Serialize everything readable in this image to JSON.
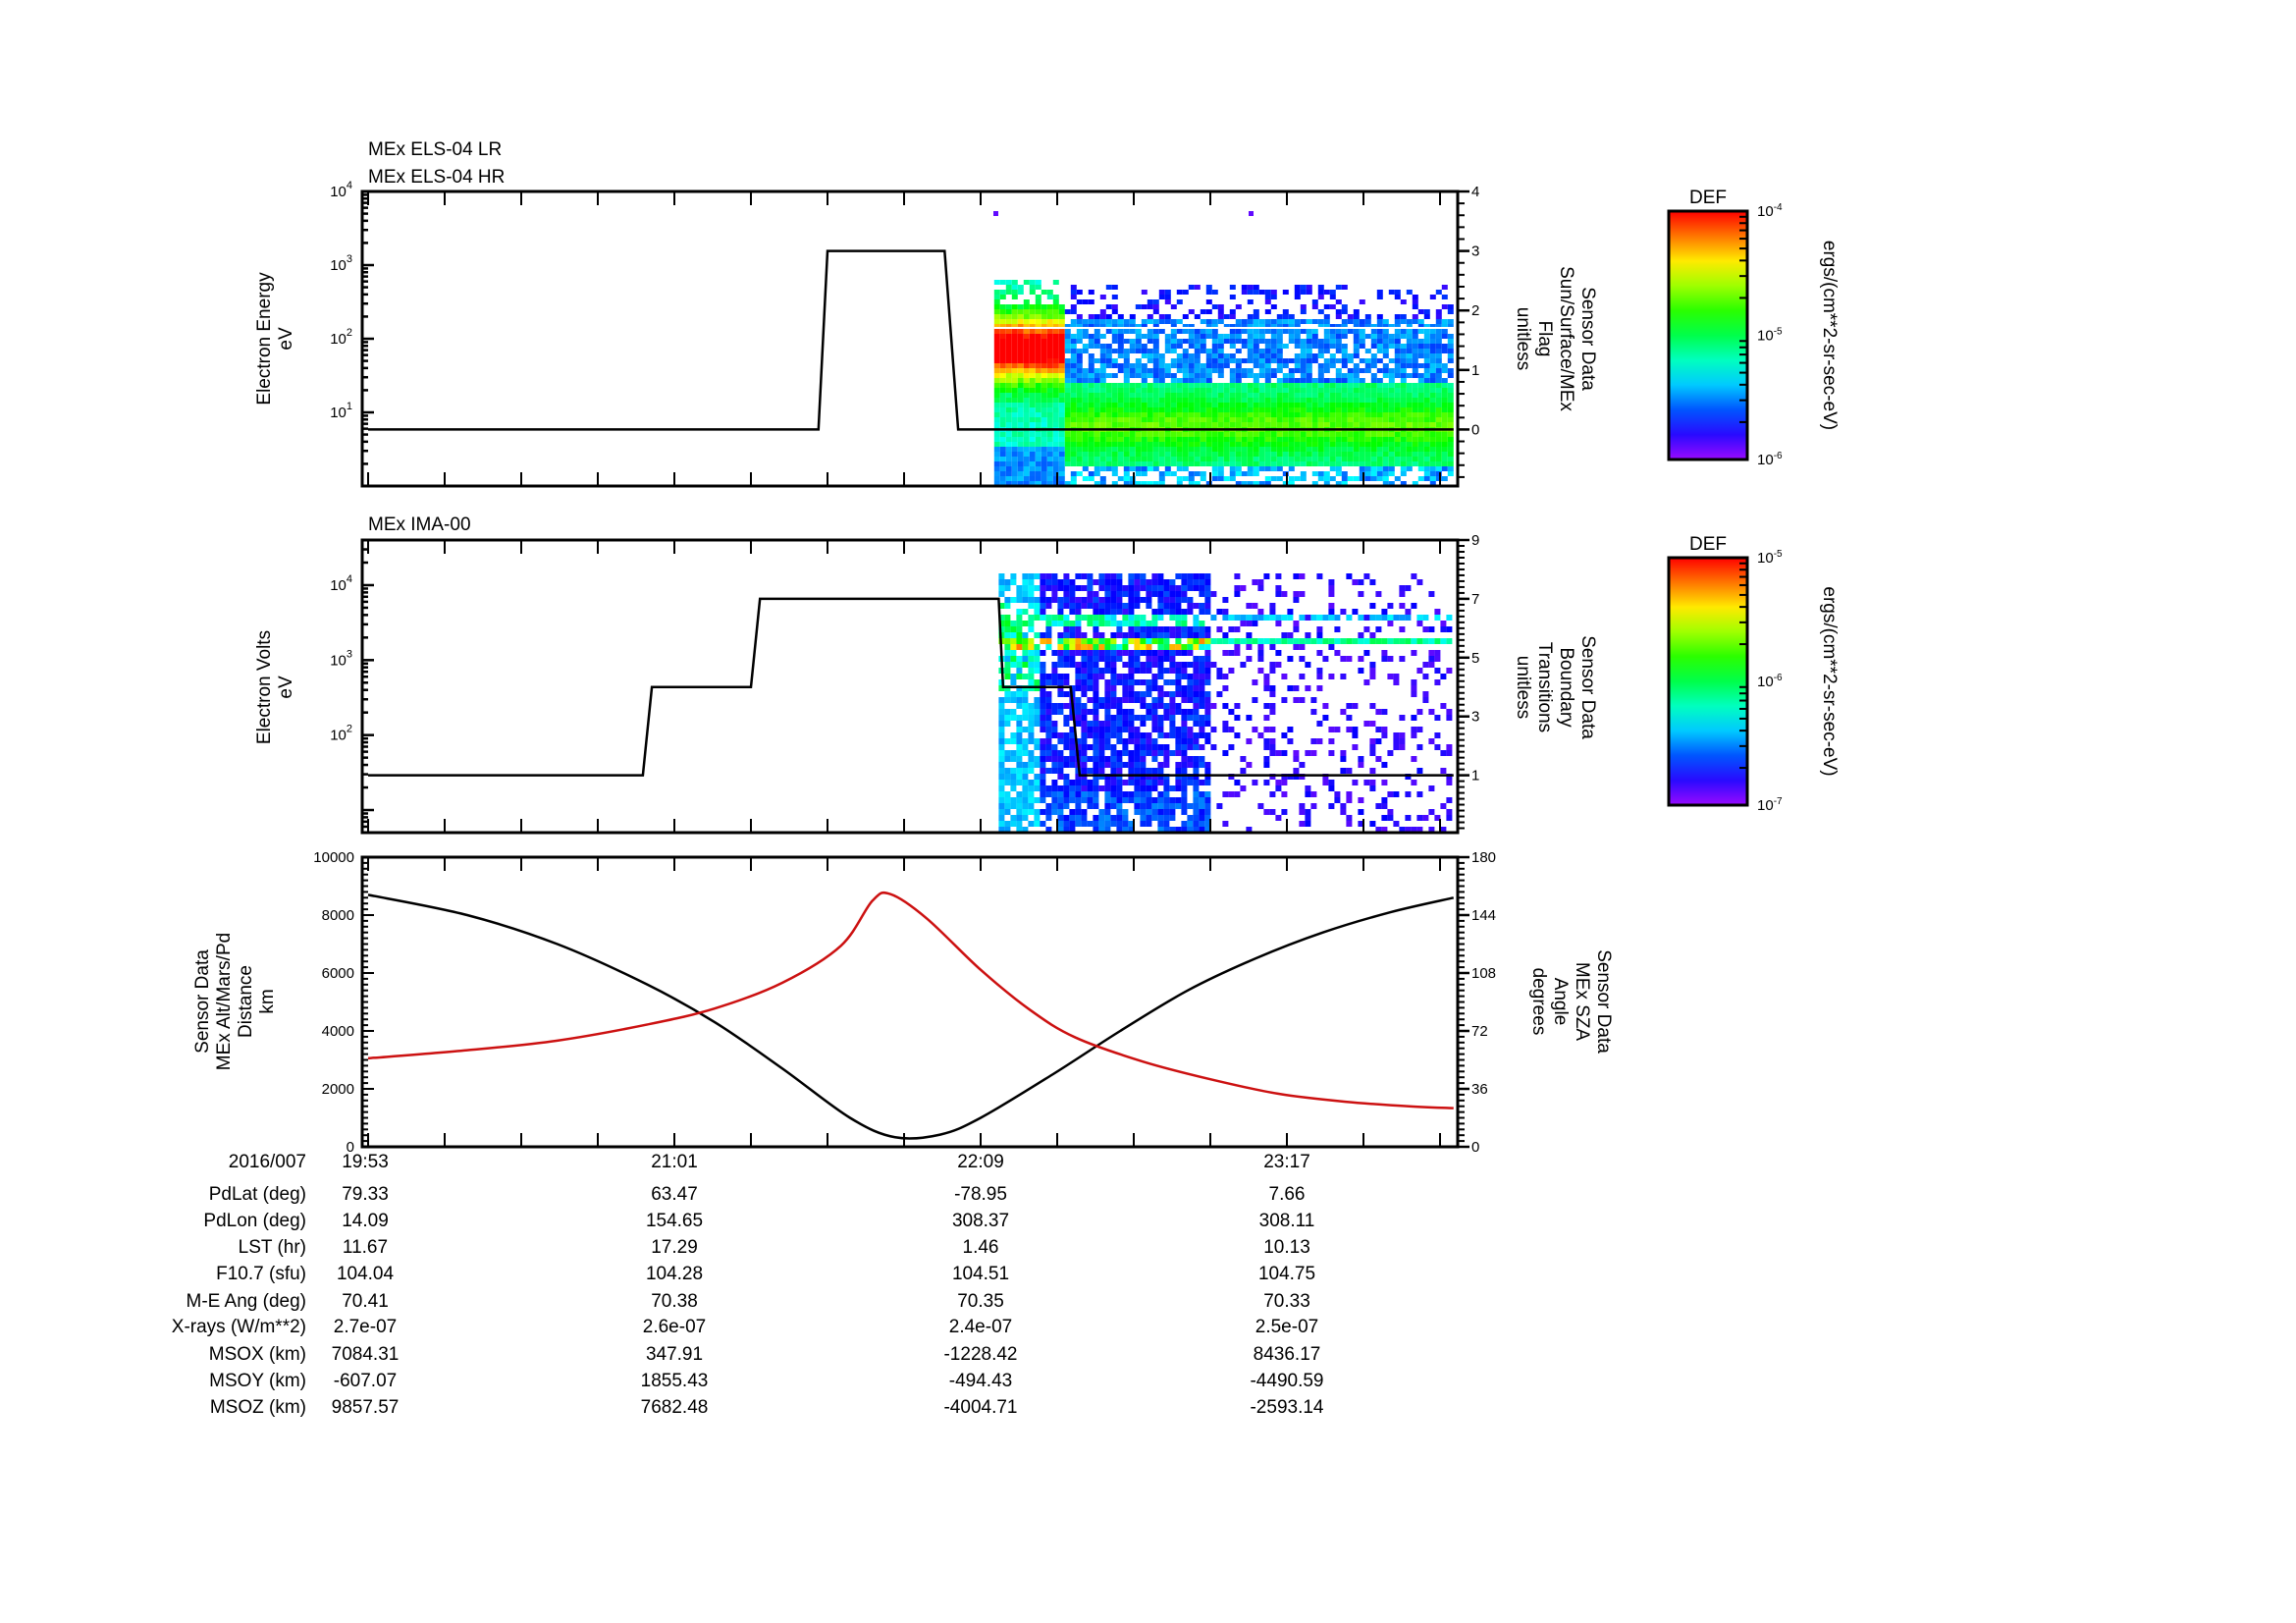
{
  "chart_data": [
    {
      "type": "heatmap",
      "panel": "els",
      "titles": [
        "MEx ELS-04 LR",
        "MEx ELS-04 HR"
      ],
      "ylabel": [
        "Electron Energy",
        "eV"
      ],
      "yscale": "log",
      "ylim": [
        1,
        10000
      ],
      "yticks": [
        {
          "base": "10",
          "exp": "4",
          "v": 10000
        },
        {
          "base": "10",
          "exp": "3",
          "v": 1000
        },
        {
          "base": "10",
          "exp": "2",
          "v": 100
        },
        {
          "base": "10",
          "exp": "1",
          "v": 10
        }
      ],
      "y2label": [
        "Sensor Data",
        "Sun/Surface/MEx",
        "Flag",
        "unitless"
      ],
      "y2lim": [
        -0.95,
        4
      ],
      "y2ticks": [
        "0",
        "1",
        "2",
        "3",
        "4"
      ],
      "spectrogram_start": "22:12",
      "spectrogram_end": "23:54",
      "flag_series": {
        "name": "Sun/Surface/MEx Flag",
        "points": [
          [
            "19:53",
            0
          ],
          [
            "21:33",
            0
          ],
          [
            "21:35",
            3
          ],
          [
            "22:01",
            3
          ],
          [
            "22:04",
            0
          ],
          [
            "23:54",
            0
          ]
        ]
      },
      "reference_line_eV": 140,
      "colorbar": {
        "title": "DEF",
        "ticks": [
          {
            "base": "10",
            "exp": "-4"
          },
          {
            "base": "10",
            "exp": "-5"
          },
          {
            "base": "10",
            "exp": "-6"
          }
        ],
        "units": "ergs/(cm**2-sr-sec-eV)",
        "range": [
          1e-06,
          0.0001
        ]
      }
    },
    {
      "type": "heatmap",
      "panel": "ima",
      "titles": [
        "MEx IMA-00"
      ],
      "ylabel": [
        "Electron Volts",
        "eV"
      ],
      "yscale": "log",
      "ylim": [
        5,
        40000
      ],
      "yticks": [
        {
          "base": "10",
          "exp": "4",
          "v": 10000
        },
        {
          "base": "10",
          "exp": "3",
          "v": 1000
        },
        {
          "base": "10",
          "exp": "2",
          "v": 100
        }
      ],
      "y2label": [
        "Sensor Data",
        "Boundary",
        "Transitions",
        "unitless"
      ],
      "y2lim": [
        -0.95,
        9
      ],
      "y2ticks": [
        "1",
        "3",
        "5",
        "7",
        "9"
      ],
      "spectrogram_start": "22:13",
      "spectrogram_dense_end": "22:59",
      "spectrogram_end": "23:53",
      "flag_series": {
        "name": "Boundary Transitions",
        "points": [
          [
            "19:53",
            1
          ],
          [
            "20:54",
            1
          ],
          [
            "20:56",
            4
          ],
          [
            "21:18",
            4
          ],
          [
            "21:20",
            7
          ],
          [
            "22:13",
            7
          ],
          [
            "22:14",
            4
          ],
          [
            "22:29",
            4
          ],
          [
            "22:31",
            1
          ],
          [
            "23:54",
            1
          ]
        ]
      },
      "colorbar": {
        "title": "DEF",
        "ticks": [
          {
            "base": "10",
            "exp": "-5"
          },
          {
            "base": "10",
            "exp": "-6"
          },
          {
            "base": "10",
            "exp": "-7"
          }
        ],
        "units": "ergs/(cm**2-sr-sec-eV)",
        "range": [
          1e-07,
          1e-05
        ]
      }
    },
    {
      "type": "line",
      "panel": "orbit",
      "ylabel": [
        "Sensor Data",
        "MEx Alt/Mars/Pd",
        "Distance",
        "km"
      ],
      "ylim": [
        0,
        10000
      ],
      "yticks": [
        "0",
        "2000",
        "4000",
        "6000",
        "8000",
        "10000"
      ],
      "y2label": [
        "Sensor Data",
        "MEx SZA",
        "Angle",
        "degrees"
      ],
      "y2lim": [
        0,
        180
      ],
      "y2ticks": [
        "0",
        "36",
        "72",
        "108",
        "144",
        "180"
      ],
      "series": [
        {
          "name": "MEx Alt/Mars/Pd Distance (km)",
          "color": "#000000",
          "axis": "left",
          "points": [
            [
              "19:53",
              8700
            ],
            [
              "20:15",
              8000
            ],
            [
              "20:35",
              7000
            ],
            [
              "20:55",
              5600
            ],
            [
              "21:10",
              4300
            ],
            [
              "21:25",
              2700
            ],
            [
              "21:40",
              1000
            ],
            [
              "21:50",
              330
            ],
            [
              "22:00",
              420
            ],
            [
              "22:09",
              1000
            ],
            [
              "22:25",
              2500
            ],
            [
              "22:40",
              4000
            ],
            [
              "22:55",
              5400
            ],
            [
              "23:10",
              6500
            ],
            [
              "23:25",
              7400
            ],
            [
              "23:40",
              8100
            ],
            [
              "23:54",
              8600
            ]
          ]
        },
        {
          "name": "MEx SZA Angle (degrees)",
          "color": "#cc1111",
          "axis": "right",
          "points": [
            [
              "19:53",
              55
            ],
            [
              "20:15",
              60
            ],
            [
              "20:35",
              66
            ],
            [
              "20:55",
              76
            ],
            [
              "21:10",
              86
            ],
            [
              "21:25",
              102
            ],
            [
              "21:38",
              125
            ],
            [
              "21:45",
              153
            ],
            [
              "21:49",
              157
            ],
            [
              "21:57",
              142
            ],
            [
              "22:09",
              110
            ],
            [
              "22:20",
              85
            ],
            [
              "22:30",
              68
            ],
            [
              "22:45",
              53
            ],
            [
              "23:00",
              42
            ],
            [
              "23:15",
              33
            ],
            [
              "23:30",
              28
            ],
            [
              "23:45",
              25
            ],
            [
              "23:54",
              24
            ]
          ]
        }
      ]
    }
  ],
  "time_axis": {
    "start": "19:53",
    "end": "23:54",
    "tick_minutes": 17
  },
  "ephemeris": {
    "header_label": "2016/007",
    "times": [
      "19:53",
      "21:01",
      "22:09",
      "23:17"
    ],
    "rows": [
      {
        "label": "PdLat (deg)",
        "values": [
          "79.33",
          "63.47",
          "-78.95",
          "7.66"
        ]
      },
      {
        "label": "PdLon (deg)",
        "values": [
          "14.09",
          "154.65",
          "308.37",
          "308.11"
        ]
      },
      {
        "label": "LST (hr)",
        "values": [
          "11.67",
          "17.29",
          "1.46",
          "10.13"
        ]
      },
      {
        "label": "F10.7 (sfu)",
        "values": [
          "104.04",
          "104.28",
          "104.51",
          "104.75"
        ]
      },
      {
        "label": "M-E Ang (deg)",
        "values": [
          "70.41",
          "70.38",
          "70.35",
          "70.33"
        ]
      },
      {
        "label": "X-rays (W/m**2)",
        "values": [
          "2.7e-07",
          "2.6e-07",
          "2.4e-07",
          "2.5e-07"
        ]
      },
      {
        "label": "MSOX (km)",
        "values": [
          "7084.31",
          "347.91",
          "-1228.42",
          "8436.17"
        ]
      },
      {
        "label": "MSOY (km)",
        "values": [
          "-607.07",
          "1855.43",
          "-494.43",
          "-4490.59"
        ]
      },
      {
        "label": "MSOZ (km)",
        "values": [
          "9857.57",
          "7682.48",
          "-4004.71",
          "-2593.14"
        ]
      }
    ]
  }
}
